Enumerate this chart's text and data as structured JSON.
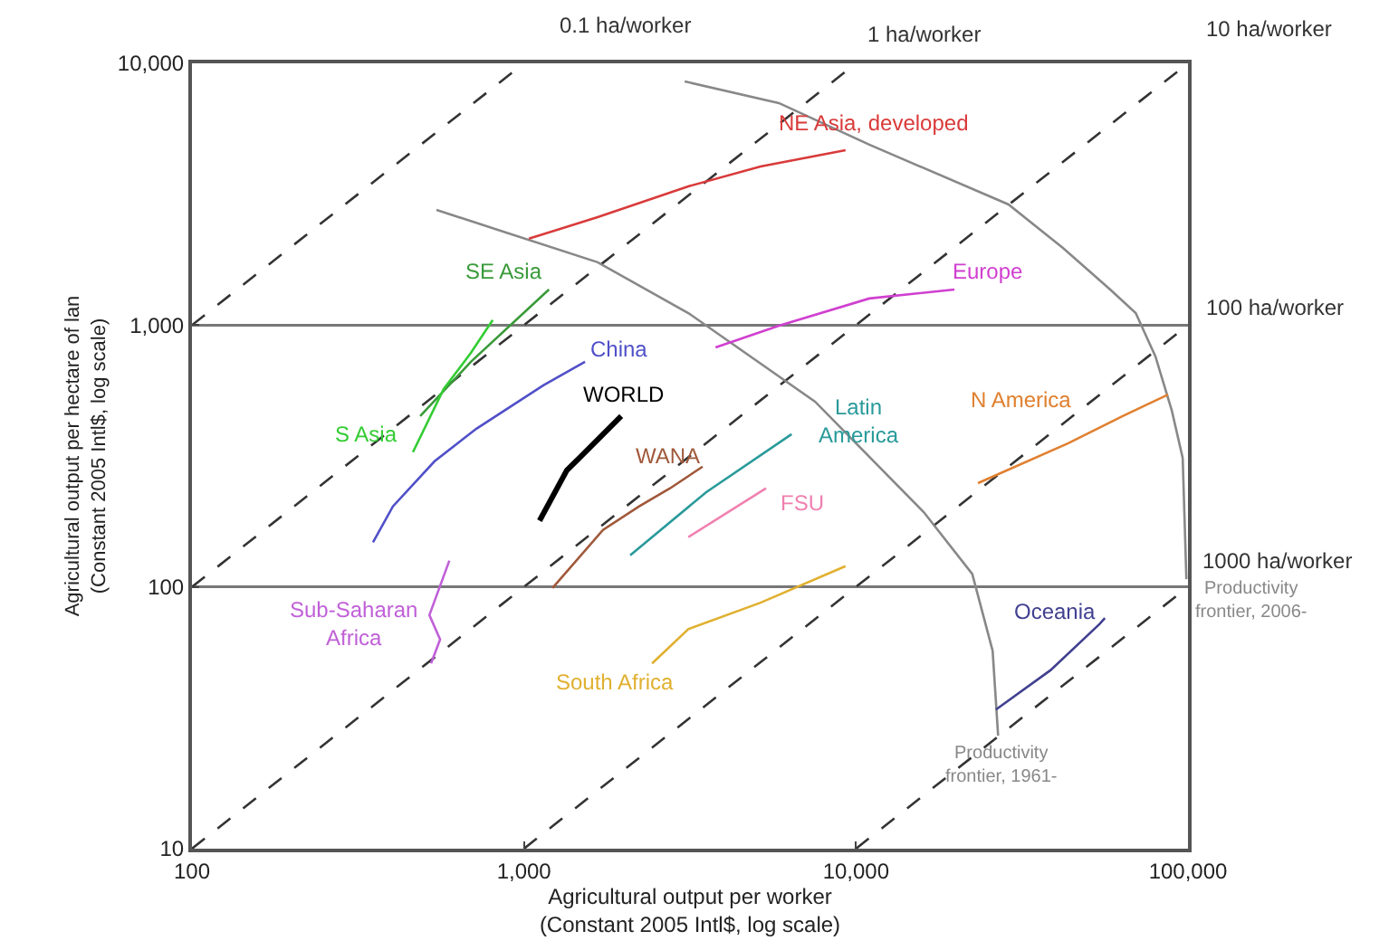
{
  "chart_data": {
    "type": "line",
    "xlabel": "Agricultural output per worker\n(Constant 2005 Intl$, log scale)",
    "ylabel": "Agricultural output per hectare of lan\n(Constant 2005 Intl$, log scale)",
    "log": "xy",
    "xlim": [
      100,
      100000
    ],
    "ylim": [
      10,
      10000
    ],
    "xticks": [
      100,
      {
        "value": 1000,
        "label": "1,000"
      },
      {
        "value": 10000,
        "label": "10,000"
      },
      {
        "value": 100000,
        "label": "100,000"
      }
    ],
    "yticks": [
      10,
      100,
      {
        "value": 1000,
        "label": "1,000"
      },
      {
        "value": 10000,
        "label": "10,000"
      }
    ],
    "grid": "y",
    "legend": false,
    "marker": "none",
    "series": [
      {
        "name": "0.1 ha/worker",
        "color": "#333333",
        "line_style": "dashed",
        "x": [
          100,
          1000
        ],
        "values": [
          1000,
          10000
        ]
      },
      {
        "name": "1 ha/worker",
        "color": "#333333",
        "line_style": "dashed",
        "x": [
          100,
          10000
        ],
        "values": [
          100,
          10000
        ]
      },
      {
        "name": "10 ha/worker",
        "color": "#333333",
        "line_style": "dashed",
        "x": [
          100,
          100000
        ],
        "values": [
          10,
          10000
        ]
      },
      {
        "name": "100 ha/worker",
        "color": "#333333",
        "line_style": "dashed",
        "x": [
          1000,
          100000
        ],
        "values": [
          10,
          1000
        ]
      },
      {
        "name": "1000 ha/worker",
        "color": "#333333",
        "line_style": "dashed",
        "x": [
          10000,
          100000
        ],
        "values": [
          10,
          100
        ]
      },
      {
        "name": "Productivity\nfrontier, 1961-",
        "color": "#888888",
        "line_style": "solid",
        "x": [
          545,
          1667,
          3126,
          7530,
          16000,
          22400,
          25800,
          26800
        ],
        "values": [
          2754,
          1738,
          1112,
          510,
          193,
          112,
          57,
          27
        ]
      },
      {
        "name": "Productivity\nfrontier, 2006-",
        "color": "#888888",
        "line_style": "solid",
        "x": [
          3048,
          5860,
          10970,
          28800,
          42000,
          58300,
          69600,
          79800,
          89400,
          96400,
          98900
        ],
        "values": [
          8530,
          7050,
          4890,
          2890,
          1972,
          1368,
          1112,
          759,
          471,
          311,
          107
        ]
      },
      {
        "name": "NE Asia, developed",
        "color": "#d93a3a",
        "line_style": "solid",
        "x": [
          1035,
          1667,
          3126,
          5160,
          9300
        ],
        "values": [
          2138,
          2586,
          3388,
          4036,
          4655
        ]
      },
      {
        "name": "SE Asia",
        "color": "#3a9a3a",
        "line_style": "solid",
        "x": [
          487,
          692,
          1189
        ],
        "values": [
          449,
          724,
          1368
        ]
      },
      {
        "name": "S Asia",
        "color": "#33cc33",
        "line_style": "solid",
        "x": [
          463,
          573,
          692,
          805
        ],
        "values": [
          327,
          570,
          783,
          1045
        ]
      },
      {
        "name": "China",
        "color": "#5050c8",
        "line_style": "solid",
        "x": [
          351,
          403,
          538,
          719,
          1144,
          1527
        ],
        "values": [
          148,
          203,
          302,
          402,
          589,
          724
        ]
      },
      {
        "name": "WORLD",
        "color": "#000000",
        "line_style": "solid",
        "x": [
          1114,
          1346,
          1469,
          1963
        ],
        "values": [
          179,
          279,
          311,
          449
        ]
      },
      {
        "name": "WANA",
        "color": "#a0583a",
        "line_style": "solid",
        "x": [
          1219,
          1730,
          2223,
          2754,
          3452
        ],
        "values": [
          99,
          165,
          203,
          238,
          288
        ]
      },
      {
        "name": "Latin\nAmerica",
        "color": "#2a9a9a",
        "line_style": "solid",
        "x": [
          2089,
          3540,
          6400
        ],
        "values": [
          132,
          230,
          383
        ]
      },
      {
        "name": "FSU",
        "color": "#f080b0",
        "line_style": "solid",
        "x": [
          3126,
          5360
        ],
        "values": [
          155,
          238
        ]
      },
      {
        "name": "Europe",
        "color": "#d040d0",
        "line_style": "solid",
        "x": [
          3776,
          5860,
          10970,
          19800
        ],
        "values": [
          822,
          995,
          1264,
          1368
        ]
      },
      {
        "name": "N America",
        "color": "#e08030",
        "line_style": "solid",
        "x": [
          23300,
          43600,
          63600,
          87100
        ],
        "values": [
          249,
          354,
          449,
          543
        ]
      },
      {
        "name": "Sub-Saharan\nAfrica",
        "color": "#c060d8",
        "line_style": "solid",
        "x": [
          596,
          519,
          559,
          525
        ],
        "values": [
          126,
          78,
          63,
          51
        ]
      },
      {
        "name": "South Africa",
        "color": "#e0b030",
        "line_style": "solid",
        "x": [
          2432,
          3126,
          5160,
          9300
        ],
        "values": [
          51,
          69,
          87,
          120
        ]
      },
      {
        "name": "Oceania",
        "color": "#404090",
        "line_style": "solid",
        "x": [
          26400,
          38500,
          54100,
          56200
        ],
        "values": [
          34,
          48,
          72,
          76
        ]
      }
    ]
  }
}
